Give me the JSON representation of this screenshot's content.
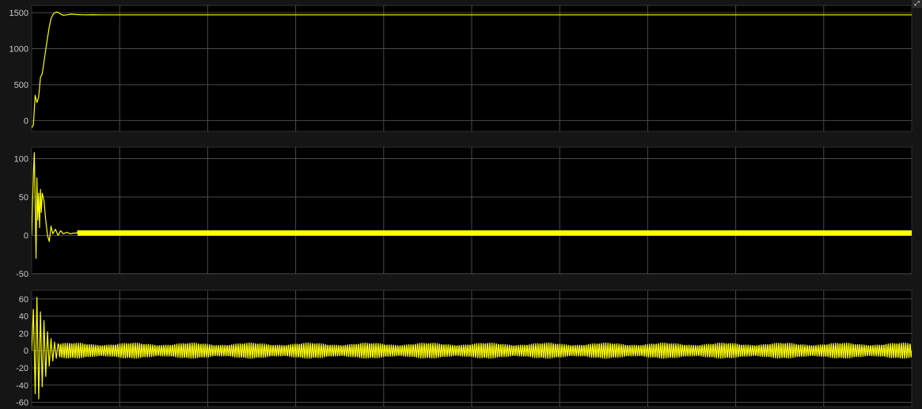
{
  "colors": {
    "plot_background": "#000000",
    "figure_background": "#151515",
    "grid": "#4a4a4a",
    "tick_text": "#c8c8c8",
    "trace": "#ffff00"
  },
  "window": {
    "expand_icon": "expand-icon",
    "expand_glyph": "⤢"
  },
  "chart_data": [
    {
      "type": "line",
      "title": "",
      "xlabel": "",
      "ylabel": "",
      "grid": true,
      "xlim": [
        0,
        10
      ],
      "ylim": [
        -150,
        1600
      ],
      "yticks": [
        0,
        500,
        1000,
        1500
      ],
      "ytick_labels": [
        "0",
        "500",
        "1000",
        "1500"
      ],
      "series": [
        {
          "color": "#ffff00",
          "x": [
            0,
            0.02,
            0.04,
            0.06,
            0.08,
            0.1,
            0.12,
            0.15,
            0.18,
            0.2,
            0.22,
            0.25,
            0.28,
            0.3,
            0.33,
            0.36,
            0.4,
            0.45,
            0.5,
            0.6,
            0.7,
            0.8,
            1.0,
            2.0,
            4.0,
            6.0,
            8.0,
            10.0
          ],
          "y": [
            -100,
            -60,
            350,
            250,
            330,
            600,
            650,
            900,
            1150,
            1300,
            1420,
            1490,
            1510,
            1505,
            1480,
            1465,
            1470,
            1480,
            1475,
            1470,
            1472,
            1470,
            1470,
            1470,
            1470,
            1470,
            1470,
            1470
          ]
        }
      ]
    },
    {
      "type": "line",
      "title": "",
      "xlabel": "",
      "ylabel": "",
      "grid": true,
      "xlim": [
        0,
        10
      ],
      "ylim": [
        -50,
        115
      ],
      "yticks": [
        -50,
        0,
        50,
        100
      ],
      "ytick_labels": [
        "-50",
        "0",
        "50",
        "100"
      ],
      "series": [
        {
          "color": "#ffff00",
          "x": [
            0,
            0.02,
            0.03,
            0.04,
            0.05,
            0.06,
            0.07,
            0.08,
            0.09,
            0.1,
            0.11,
            0.12,
            0.14,
            0.16,
            0.18,
            0.2,
            0.22,
            0.24,
            0.27,
            0.3,
            0.33,
            0.36,
            0.4,
            0.44,
            0.48,
            0.52
          ],
          "y": [
            0,
            80,
            108,
            40,
            -30,
            75,
            20,
            55,
            10,
            60,
            30,
            55,
            45,
            20,
            0,
            -8,
            12,
            2,
            8,
            0,
            6,
            2,
            4,
            2,
            3,
            3
          ]
        }
      ],
      "steady_band": {
        "x_start": 0.52,
        "x_end": 10,
        "center": 3,
        "amplitude": 3
      }
    },
    {
      "type": "line",
      "title": "",
      "xlabel": "",
      "ylabel": "",
      "grid": true,
      "xlim": [
        0,
        10
      ],
      "ylim": [
        -65,
        70
      ],
      "yticks": [
        -60,
        -40,
        -20,
        0,
        20,
        40,
        60
      ],
      "ytick_labels": [
        "-60",
        "-40",
        "-20",
        "0",
        "20",
        "40",
        "60"
      ],
      "series": [
        {
          "color": "#ffff00",
          "x": [
            0,
            0.02,
            0.04,
            0.06,
            0.08,
            0.1,
            0.12,
            0.14,
            0.16,
            0.18,
            0.2,
            0.22,
            0.24,
            0.26,
            0.28,
            0.3
          ],
          "y": [
            0,
            48,
            -50,
            62,
            -56,
            45,
            -42,
            35,
            -30,
            22,
            -18,
            14,
            -12,
            10,
            -9,
            8
          ]
        }
      ],
      "steady_oscillation": {
        "x_start": 0.3,
        "x_end": 10,
        "amplitude": 9,
        "cycles": 390
      }
    }
  ]
}
